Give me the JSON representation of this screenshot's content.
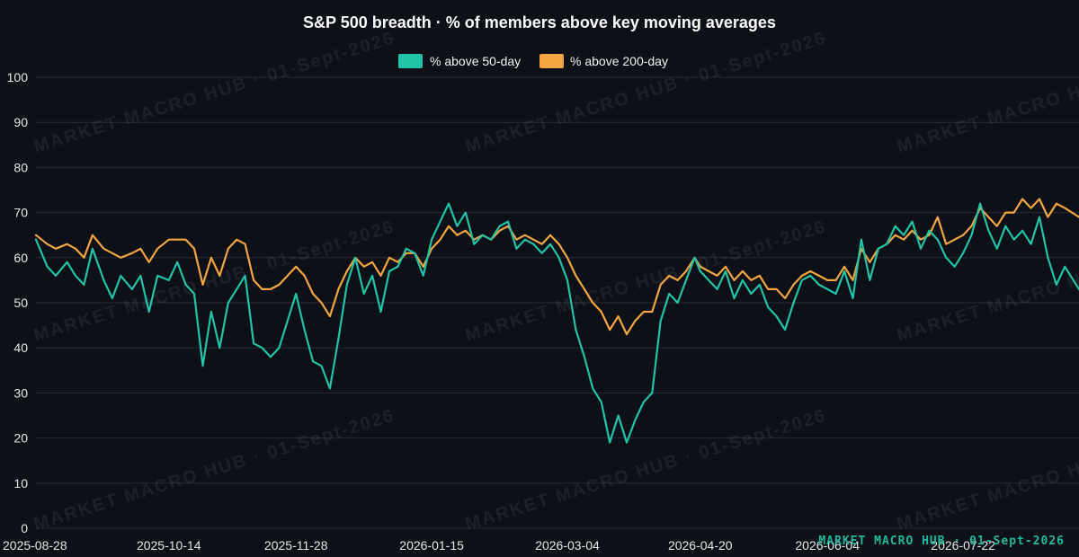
{
  "chart_data": {
    "type": "line",
    "title": "S&P 500 breadth · % of members above key moving averages",
    "xlabel": "",
    "ylabel": "",
    "ylim": [
      0,
      100
    ],
    "yticks": [
      0,
      10,
      20,
      30,
      40,
      50,
      60,
      70,
      80,
      90,
      100
    ],
    "x_start": "2025-08-28",
    "x_end": "2026-09-01",
    "xtick_labels": [
      "2025-08-28",
      "2025-10-14",
      "2025-11-28",
      "2026-01-15",
      "2026-03-04",
      "2026-04-20",
      "2026-06-04",
      "2026-07-22"
    ],
    "grid": true,
    "legend_position": "top-center",
    "series": [
      {
        "name": "% above 50-day",
        "color": "#22c3a6",
        "points": [
          [
            "2025-08-28",
            64
          ],
          [
            "2025-09-01",
            58
          ],
          [
            "2025-09-04",
            56
          ],
          [
            "2025-09-08",
            59
          ],
          [
            "2025-09-11",
            56
          ],
          [
            "2025-09-14",
            54
          ],
          [
            "2025-09-17",
            62
          ],
          [
            "2025-09-21",
            55
          ],
          [
            "2025-09-24",
            51
          ],
          [
            "2025-09-27",
            56
          ],
          [
            "2025-10-01",
            53
          ],
          [
            "2025-10-04",
            56
          ],
          [
            "2025-10-07",
            48
          ],
          [
            "2025-10-10",
            56
          ],
          [
            "2025-10-14",
            55
          ],
          [
            "2025-10-17",
            59
          ],
          [
            "2025-10-20",
            54
          ],
          [
            "2025-10-23",
            52
          ],
          [
            "2025-10-26",
            36
          ],
          [
            "2025-10-29",
            48
          ],
          [
            "2025-11-01",
            40
          ],
          [
            "2025-11-04",
            50
          ],
          [
            "2025-11-07",
            53
          ],
          [
            "2025-11-10",
            56
          ],
          [
            "2025-11-13",
            41
          ],
          [
            "2025-11-16",
            40
          ],
          [
            "2025-11-19",
            38
          ],
          [
            "2025-11-22",
            40
          ],
          [
            "2025-11-25",
            46
          ],
          [
            "2025-11-28",
            52
          ],
          [
            "2025-12-01",
            44
          ],
          [
            "2025-12-04",
            37
          ],
          [
            "2025-12-07",
            36
          ],
          [
            "2025-12-10",
            31
          ],
          [
            "2025-12-13",
            42
          ],
          [
            "2025-12-16",
            54
          ],
          [
            "2025-12-19",
            60
          ],
          [
            "2025-12-22",
            52
          ],
          [
            "2025-12-25",
            56
          ],
          [
            "2025-12-28",
            48
          ],
          [
            "2025-12-31",
            57
          ],
          [
            "2026-01-03",
            58
          ],
          [
            "2026-01-06",
            62
          ],
          [
            "2026-01-09",
            61
          ],
          [
            "2026-01-12",
            56
          ],
          [
            "2026-01-15",
            64
          ],
          [
            "2026-01-18",
            68
          ],
          [
            "2026-01-21",
            72
          ],
          [
            "2026-01-24",
            67
          ],
          [
            "2026-01-27",
            70
          ],
          [
            "2026-01-30",
            63
          ],
          [
            "2026-02-02",
            65
          ],
          [
            "2026-02-05",
            64
          ],
          [
            "2026-02-08",
            67
          ],
          [
            "2026-02-11",
            68
          ],
          [
            "2026-02-14",
            62
          ],
          [
            "2026-02-17",
            64
          ],
          [
            "2026-02-20",
            63
          ],
          [
            "2026-02-23",
            61
          ],
          [
            "2026-02-26",
            63
          ],
          [
            "2026-03-01",
            60
          ],
          [
            "2026-03-04",
            55
          ],
          [
            "2026-03-07",
            44
          ],
          [
            "2026-03-10",
            38
          ],
          [
            "2026-03-13",
            31
          ],
          [
            "2026-03-16",
            28
          ],
          [
            "2026-03-19",
            19
          ],
          [
            "2026-03-22",
            25
          ],
          [
            "2026-03-25",
            19
          ],
          [
            "2026-03-28",
            24
          ],
          [
            "2026-03-31",
            28
          ],
          [
            "2026-04-03",
            30
          ],
          [
            "2026-04-06",
            46
          ],
          [
            "2026-04-09",
            52
          ],
          [
            "2026-04-12",
            50
          ],
          [
            "2026-04-15",
            55
          ],
          [
            "2026-04-18",
            60
          ],
          [
            "2026-04-20",
            57
          ],
          [
            "2026-04-23",
            55
          ],
          [
            "2026-04-26",
            53
          ],
          [
            "2026-04-29",
            57
          ],
          [
            "2026-05-02",
            51
          ],
          [
            "2026-05-05",
            55
          ],
          [
            "2026-05-08",
            52
          ],
          [
            "2026-05-11",
            54
          ],
          [
            "2026-05-14",
            49
          ],
          [
            "2026-05-17",
            47
          ],
          [
            "2026-05-20",
            44
          ],
          [
            "2026-05-23",
            50
          ],
          [
            "2026-05-26",
            55
          ],
          [
            "2026-05-29",
            56
          ],
          [
            "2026-06-01",
            54
          ],
          [
            "2026-06-04",
            53
          ],
          [
            "2026-06-07",
            52
          ],
          [
            "2026-06-10",
            57
          ],
          [
            "2026-06-13",
            51
          ],
          [
            "2026-06-16",
            64
          ],
          [
            "2026-06-19",
            55
          ],
          [
            "2026-06-22",
            62
          ],
          [
            "2026-06-25",
            63
          ],
          [
            "2026-06-28",
            67
          ],
          [
            "2026-07-01",
            65
          ],
          [
            "2026-07-04",
            68
          ],
          [
            "2026-07-07",
            62
          ],
          [
            "2026-07-10",
            66
          ],
          [
            "2026-07-13",
            64
          ],
          [
            "2026-07-16",
            60
          ],
          [
            "2026-07-19",
            58
          ],
          [
            "2026-07-22",
            61
          ],
          [
            "2026-07-25",
            65
          ],
          [
            "2026-07-28",
            72
          ],
          [
            "2026-07-31",
            66
          ],
          [
            "2026-08-03",
            62
          ],
          [
            "2026-08-06",
            67
          ],
          [
            "2026-08-09",
            64
          ],
          [
            "2026-08-12",
            66
          ],
          [
            "2026-08-15",
            63
          ],
          [
            "2026-08-18",
            69
          ],
          [
            "2026-08-21",
            60
          ],
          [
            "2026-08-24",
            54
          ],
          [
            "2026-08-27",
            58
          ],
          [
            "2026-09-01",
            53
          ]
        ]
      },
      {
        "name": "% above 200-day",
        "color": "#f2a541",
        "points": [
          [
            "2025-08-28",
            65
          ],
          [
            "2025-09-01",
            63
          ],
          [
            "2025-09-04",
            62
          ],
          [
            "2025-09-08",
            63
          ],
          [
            "2025-09-11",
            62
          ],
          [
            "2025-09-14",
            60
          ],
          [
            "2025-09-17",
            65
          ],
          [
            "2025-09-21",
            62
          ],
          [
            "2025-09-24",
            61
          ],
          [
            "2025-09-27",
            60
          ],
          [
            "2025-10-01",
            61
          ],
          [
            "2025-10-04",
            62
          ],
          [
            "2025-10-07",
            59
          ],
          [
            "2025-10-10",
            62
          ],
          [
            "2025-10-14",
            64
          ],
          [
            "2025-10-17",
            64
          ],
          [
            "2025-10-20",
            64
          ],
          [
            "2025-10-23",
            62
          ],
          [
            "2025-10-26",
            54
          ],
          [
            "2025-10-29",
            60
          ],
          [
            "2025-11-01",
            56
          ],
          [
            "2025-11-04",
            62
          ],
          [
            "2025-11-07",
            64
          ],
          [
            "2025-11-10",
            63
          ],
          [
            "2025-11-13",
            55
          ],
          [
            "2025-11-16",
            53
          ],
          [
            "2025-11-19",
            53
          ],
          [
            "2025-11-22",
            54
          ],
          [
            "2025-11-25",
            56
          ],
          [
            "2025-11-28",
            58
          ],
          [
            "2025-12-01",
            56
          ],
          [
            "2025-12-04",
            52
          ],
          [
            "2025-12-07",
            50
          ],
          [
            "2025-12-10",
            47
          ],
          [
            "2025-12-13",
            53
          ],
          [
            "2025-12-16",
            57
          ],
          [
            "2025-12-19",
            60
          ],
          [
            "2025-12-22",
            58
          ],
          [
            "2025-12-25",
            59
          ],
          [
            "2025-12-28",
            56
          ],
          [
            "2025-12-31",
            60
          ],
          [
            "2026-01-03",
            59
          ],
          [
            "2026-01-06",
            61
          ],
          [
            "2026-01-09",
            61
          ],
          [
            "2026-01-12",
            58
          ],
          [
            "2026-01-15",
            62
          ],
          [
            "2026-01-18",
            64
          ],
          [
            "2026-01-21",
            67
          ],
          [
            "2026-01-24",
            65
          ],
          [
            "2026-01-27",
            66
          ],
          [
            "2026-01-30",
            64
          ],
          [
            "2026-02-02",
            65
          ],
          [
            "2026-02-05",
            64
          ],
          [
            "2026-02-08",
            66
          ],
          [
            "2026-02-11",
            67
          ],
          [
            "2026-02-14",
            64
          ],
          [
            "2026-02-17",
            65
          ],
          [
            "2026-02-20",
            64
          ],
          [
            "2026-02-23",
            63
          ],
          [
            "2026-02-26",
            65
          ],
          [
            "2026-03-01",
            63
          ],
          [
            "2026-03-04",
            60
          ],
          [
            "2026-03-07",
            56
          ],
          [
            "2026-03-10",
            53
          ],
          [
            "2026-03-13",
            50
          ],
          [
            "2026-03-16",
            48
          ],
          [
            "2026-03-19",
            44
          ],
          [
            "2026-03-22",
            47
          ],
          [
            "2026-03-25",
            43
          ],
          [
            "2026-03-28",
            46
          ],
          [
            "2026-03-31",
            48
          ],
          [
            "2026-04-03",
            48
          ],
          [
            "2026-04-06",
            54
          ],
          [
            "2026-04-09",
            56
          ],
          [
            "2026-04-12",
            55
          ],
          [
            "2026-04-15",
            57
          ],
          [
            "2026-04-18",
            60
          ],
          [
            "2026-04-20",
            58
          ],
          [
            "2026-04-23",
            57
          ],
          [
            "2026-04-26",
            56
          ],
          [
            "2026-04-29",
            58
          ],
          [
            "2026-05-02",
            55
          ],
          [
            "2026-05-05",
            57
          ],
          [
            "2026-05-08",
            55
          ],
          [
            "2026-05-11",
            56
          ],
          [
            "2026-05-14",
            53
          ],
          [
            "2026-05-17",
            53
          ],
          [
            "2026-05-20",
            51
          ],
          [
            "2026-05-23",
            54
          ],
          [
            "2026-05-26",
            56
          ],
          [
            "2026-05-29",
            57
          ],
          [
            "2026-06-01",
            56
          ],
          [
            "2026-06-04",
            55
          ],
          [
            "2026-06-07",
            55
          ],
          [
            "2026-06-10",
            58
          ],
          [
            "2026-06-13",
            55
          ],
          [
            "2026-06-16",
            62
          ],
          [
            "2026-06-19",
            59
          ],
          [
            "2026-06-22",
            62
          ],
          [
            "2026-06-25",
            63
          ],
          [
            "2026-06-28",
            65
          ],
          [
            "2026-07-01",
            64
          ],
          [
            "2026-07-04",
            66
          ],
          [
            "2026-07-07",
            64
          ],
          [
            "2026-07-10",
            65
          ],
          [
            "2026-07-13",
            69
          ],
          [
            "2026-07-16",
            63
          ],
          [
            "2026-07-19",
            64
          ],
          [
            "2026-07-22",
            65
          ],
          [
            "2026-07-25",
            67
          ],
          [
            "2026-07-28",
            71
          ],
          [
            "2026-07-31",
            69
          ],
          [
            "2026-08-03",
            67
          ],
          [
            "2026-08-06",
            70
          ],
          [
            "2026-08-09",
            70
          ],
          [
            "2026-08-12",
            73
          ],
          [
            "2026-08-15",
            71
          ],
          [
            "2026-08-18",
            73
          ],
          [
            "2026-08-21",
            69
          ],
          [
            "2026-08-24",
            72
          ],
          [
            "2026-08-27",
            71
          ],
          [
            "2026-09-01",
            69
          ]
        ]
      }
    ]
  },
  "watermark": {
    "text": "MARKET MACRO HUB · 01-Sept-2026",
    "color": "#1fb89a"
  }
}
